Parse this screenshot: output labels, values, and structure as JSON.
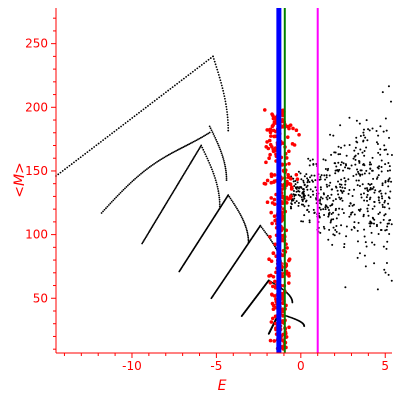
{
  "chart_data": {
    "type": "scatter",
    "xlabel": "E",
    "ylabel": "<M>",
    "xlim": [
      -14.5,
      5.4
    ],
    "ylim": [
      7,
      278
    ],
    "xticks": [
      -10,
      -5,
      0,
      5
    ],
    "yticks": [
      50,
      100,
      150,
      200,
      250
    ],
    "grid": false,
    "legend": "none",
    "colors": {
      "axis": "#ff0000",
      "tick_text": "#ff0000",
      "black_points": "#000000",
      "red_points": "#ff0000",
      "blue_line": "#0000ff",
      "green_line": "#008000",
      "magenta_line": "#ff00ff"
    },
    "vertical_lines": [
      {
        "x": -1.3,
        "color": "#0000ff",
        "width": "thick"
      },
      {
        "x": -0.95,
        "color": "#008000",
        "width": "thin"
      },
      {
        "x": 1.0,
        "color": "#ff00ff",
        "width": "thin"
      }
    ],
    "black_branches": [
      {
        "x0": -14.5,
        "y0": 146,
        "x1": -5.2,
        "y1": 240
      },
      {
        "x0": -11.8,
        "y0": 117,
        "x1": -5.4,
        "y1": 185
      },
      {
        "x0": -9.4,
        "y0": 93,
        "x1": -5.9,
        "y1": 170
      },
      {
        "x0": -7.2,
        "y0": 71,
        "x1": -4.3,
        "y1": 131
      },
      {
        "x0": -5.3,
        "y0": 50,
        "x1": -2.4,
        "y1": 107
      },
      {
        "x0": -3.5,
        "y0": 36,
        "x1": -1.9,
        "y1": 64
      },
      {
        "x0": -1.9,
        "y0": 22,
        "x1": -1.3,
        "y1": 38
      }
    ],
    "black_cloud": {
      "x_range": [
        -0.6,
        5.4
      ],
      "y_range": [
        55,
        278
      ],
      "center_y": 133
    },
    "red_cluster": {
      "x_range": [
        -3.0,
        1.0
      ],
      "y_range": [
        10,
        198
      ],
      "center_x": -1.2
    }
  }
}
